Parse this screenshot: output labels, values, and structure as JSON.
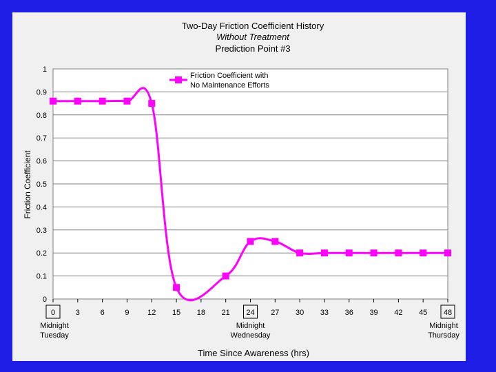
{
  "chart_data": {
    "type": "line",
    "title": "Two-Day Friction Coefficient History",
    "subtitle": "Without Treatment",
    "subtitle2": "Prediction Point #3",
    "xlabel": "Time Since Awareness (hrs)",
    "ylabel": "Friction Coefficient",
    "xlim": [
      0,
      48
    ],
    "ylim": [
      0,
      1
    ],
    "x_ticks": [
      0,
      3,
      6,
      9,
      12,
      15,
      18,
      21,
      24,
      27,
      30,
      33,
      36,
      39,
      42,
      45,
      48
    ],
    "y_ticks": [
      0,
      0.1,
      0.2,
      0.3,
      0.4,
      0.5,
      0.6,
      0.7,
      0.8,
      0.9,
      1
    ],
    "highlighted_ticks": [
      0,
      24,
      48
    ],
    "x_annotations": [
      {
        "x": 0,
        "lines": [
          "Midnight",
          "Tuesday"
        ]
      },
      {
        "x": 24,
        "lines": [
          "Midnight",
          "Wednesday"
        ]
      },
      {
        "x": 48,
        "lines": [
          "Midnight",
          "Thursday"
        ]
      }
    ],
    "grid": "horizontal",
    "legend_position": "top-right",
    "series": [
      {
        "name": "Friction Coefficient with No Maintenance Efforts",
        "name_lines": [
          "Friction Coefficient with",
          "No Maintenance Efforts"
        ],
        "color": "#ff00ff",
        "x": [
          0,
          3,
          6,
          9,
          12,
          15,
          21,
          24,
          27,
          30,
          33,
          36,
          39,
          42,
          45,
          48
        ],
        "values": [
          0.86,
          0.86,
          0.86,
          0.86,
          0.85,
          0.05,
          0.1,
          0.25,
          0.25,
          0.2,
          0.2,
          0.2,
          0.2,
          0.2,
          0.2,
          0.2
        ]
      }
    ]
  },
  "colors": {
    "background": "#1e1ee6",
    "panel": "#f0f0f0",
    "plot_area": "#ffffff",
    "series": "#ff00ff"
  }
}
